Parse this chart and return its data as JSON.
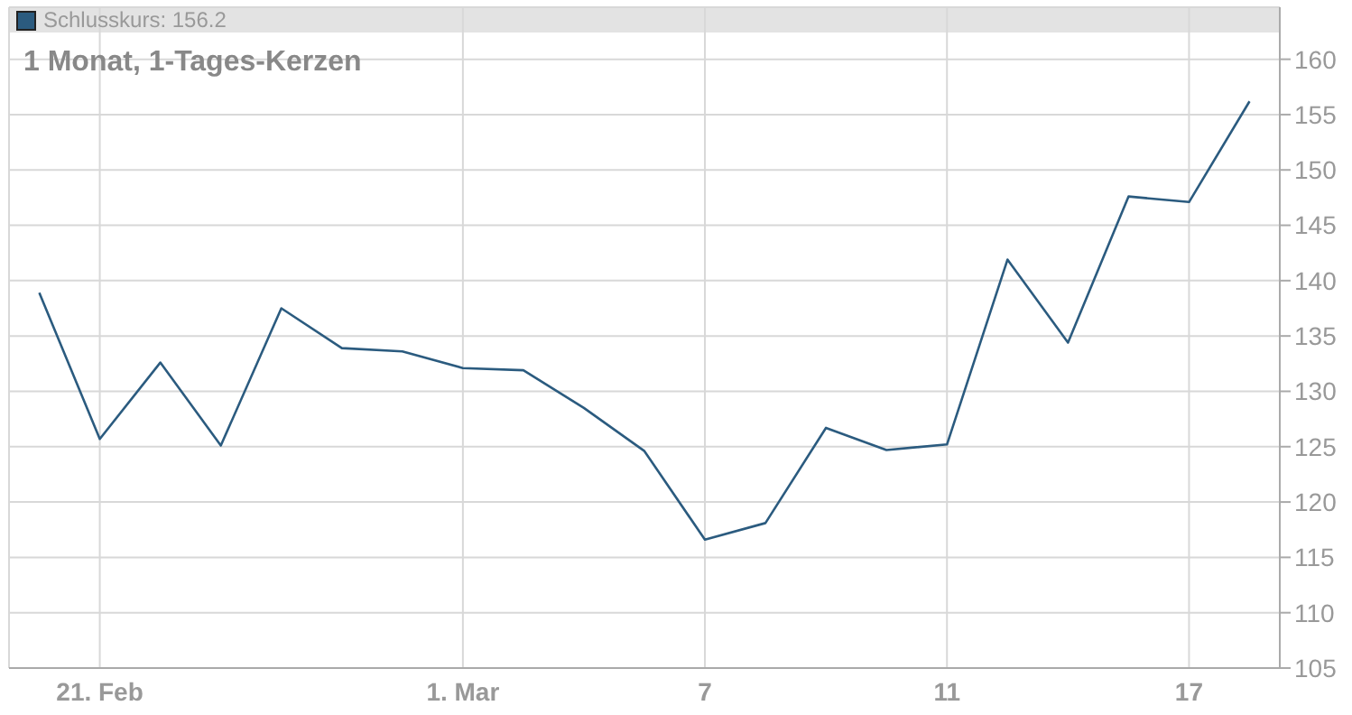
{
  "chart_data": {
    "type": "line",
    "title": "1 Monat, 1-Tages-Kerzen",
    "categories": [
      null,
      "21. Feb",
      null,
      null,
      null,
      null,
      null,
      "1. Mar",
      null,
      null,
      null,
      "7",
      null,
      null,
      null,
      "11",
      null,
      null,
      null,
      "17",
      null
    ],
    "series": [
      {
        "name": "Schlusskurs: 156.2",
        "color": "#2b5b7f",
        "values": [
          138.9,
          125.7,
          132.6,
          125.1,
          137.5,
          133.9,
          133.6,
          132.1,
          131.9,
          128.5,
          124.6,
          116.6,
          118.1,
          126.7,
          124.7,
          125.2,
          141.9,
          134.4,
          147.6,
          147.1,
          156.2
        ]
      }
    ],
    "ylim": [
      105,
      164.7
    ],
    "yticks": [
      105,
      110,
      115,
      120,
      125,
      130,
      135,
      140,
      145,
      150,
      155,
      160
    ],
    "grid": true,
    "legend": "top left",
    "marker": "none",
    "line_style": "solid"
  }
}
